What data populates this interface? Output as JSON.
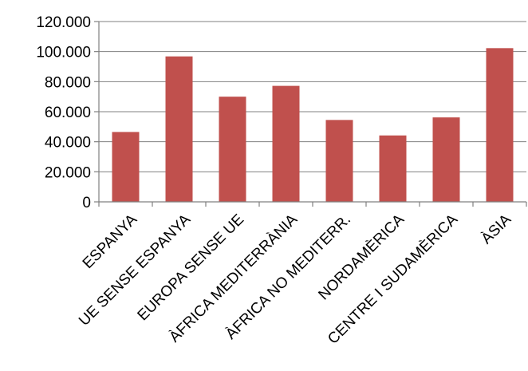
{
  "chart_data": {
    "type": "bar",
    "title": "",
    "xlabel": "",
    "ylabel": "",
    "categories": [
      "ESPANYA",
      "UE SENSE ESPANYA",
      "EUROPA SENSE UE",
      "ÀFRICA MEDITERRÀNIA",
      "ÀFRICA NO MEDITERR.",
      "NORDAMÈRICA",
      "CENTRE I SUDAMÈRICA",
      "ÀSIA"
    ],
    "values": [
      46500,
      96800,
      70000,
      77200,
      54500,
      44200,
      56200,
      102300
    ],
    "ylim": [
      0,
      120000
    ],
    "yticks": [
      0,
      20000,
      40000,
      60000,
      80000,
      100000,
      120000
    ],
    "ytick_labels": [
      "0",
      "20.000",
      "40.000",
      "60.000",
      "80.000",
      "100.000",
      "120.000"
    ],
    "grid": true,
    "legend": "none",
    "bar_color": "#C0504D"
  }
}
